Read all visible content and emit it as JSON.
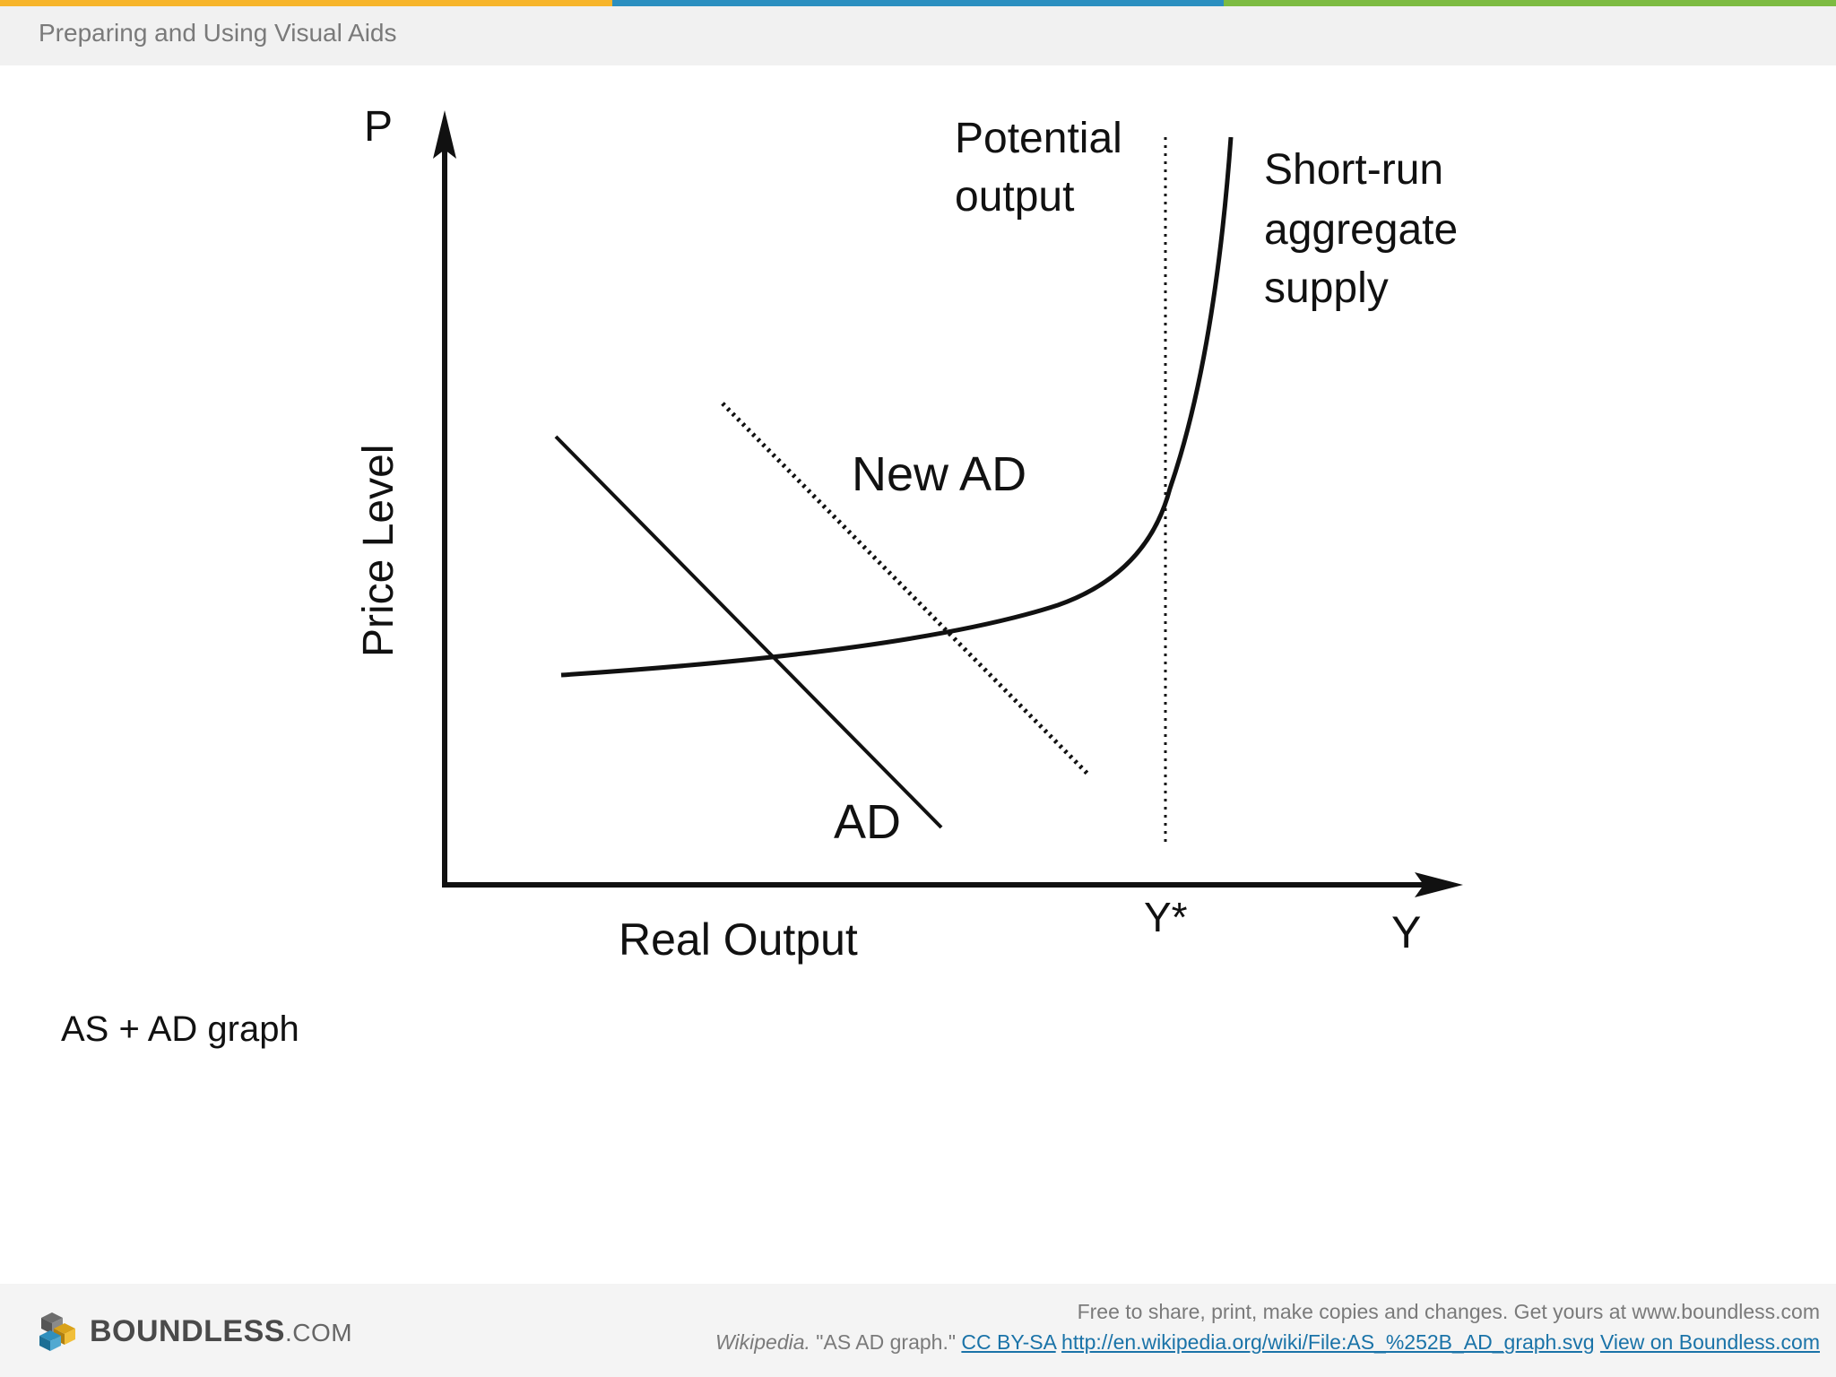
{
  "header": {
    "title": "Preparing and Using Visual Aids",
    "stripe_colors": [
      "#f7b52b",
      "#2b8fc0",
      "#7dbb42"
    ]
  },
  "figure": {
    "labels": {
      "y_axis_letter": "P",
      "y_axis_label": "Price Level",
      "x_axis_label": "Real Output",
      "x_axis_letter": "Y",
      "potential_marker": "Y*",
      "potential_line1": "Potential",
      "potential_line2": "output",
      "sras_line1": "Short-run",
      "sras_line2": "aggregate",
      "sras_line3": "supply",
      "new_ad": "New AD",
      "ad": "AD"
    }
  },
  "caption": "AS + AD graph",
  "footer": {
    "logo_text": "BOUNDLESS",
    "logo_suffix": ".COM",
    "line1": "Free to share, print, make copies and changes. Get yours at www.boundless.com",
    "source_name": "Wikipedia.",
    "source_title": " \"AS AD graph.\" ",
    "license_link": "CC BY-SA",
    "url_link": "http://en.wikipedia.org/wiki/File:AS_%252B_AD_graph.svg",
    "view_link": "View on Boundless.com"
  }
}
